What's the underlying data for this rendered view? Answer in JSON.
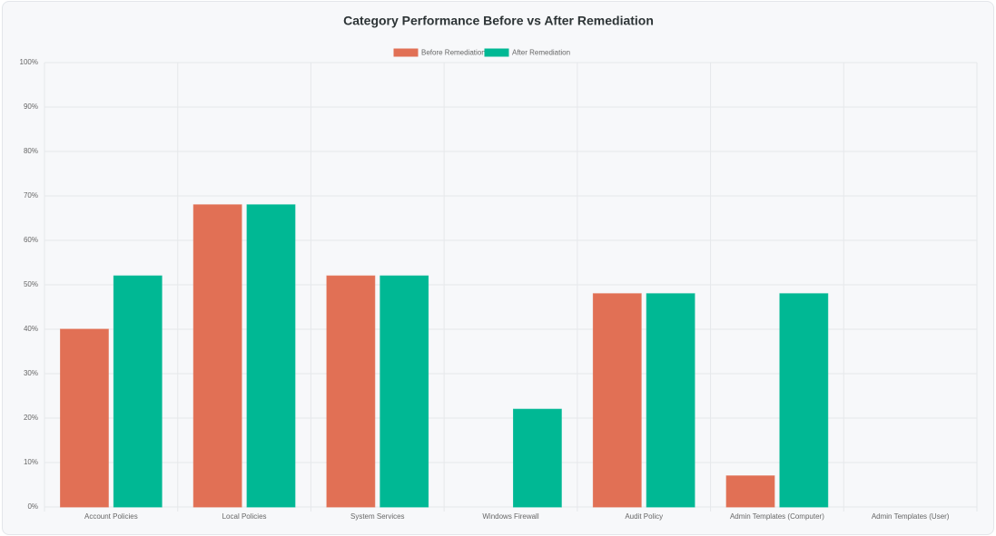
{
  "chart_data": {
    "type": "bar",
    "title": "Category Performance Before vs After Remediation",
    "categories": [
      "Account Policies",
      "Local Policies",
      "System Services",
      "Windows Firewall",
      "Audit Policy",
      "Admin Templates (Computer)",
      "Admin Templates (User)"
    ],
    "series": [
      {
        "name": "Before Remediation",
        "color": "#e17055",
        "values": [
          40,
          68,
          52,
          0,
          48,
          7,
          0
        ]
      },
      {
        "name": "After Remediation",
        "color": "#00b894",
        "values": [
          52,
          68,
          52,
          22,
          48,
          48,
          0
        ]
      }
    ],
    "ylim": [
      0,
      100
    ],
    "yticks": [
      {
        "value": 0,
        "label": "0%"
      },
      {
        "value": 10,
        "label": "10%"
      },
      {
        "value": 20,
        "label": "20%"
      },
      {
        "value": 30,
        "label": "30%"
      },
      {
        "value": 40,
        "label": "40%"
      },
      {
        "value": 50,
        "label": "50%"
      },
      {
        "value": 60,
        "label": "60%"
      },
      {
        "value": 70,
        "label": "70%"
      },
      {
        "value": 80,
        "label": "80%"
      },
      {
        "value": 90,
        "label": "90%"
      },
      {
        "value": 100,
        "label": "100%"
      }
    ],
    "grid": true,
    "legend": "top"
  }
}
